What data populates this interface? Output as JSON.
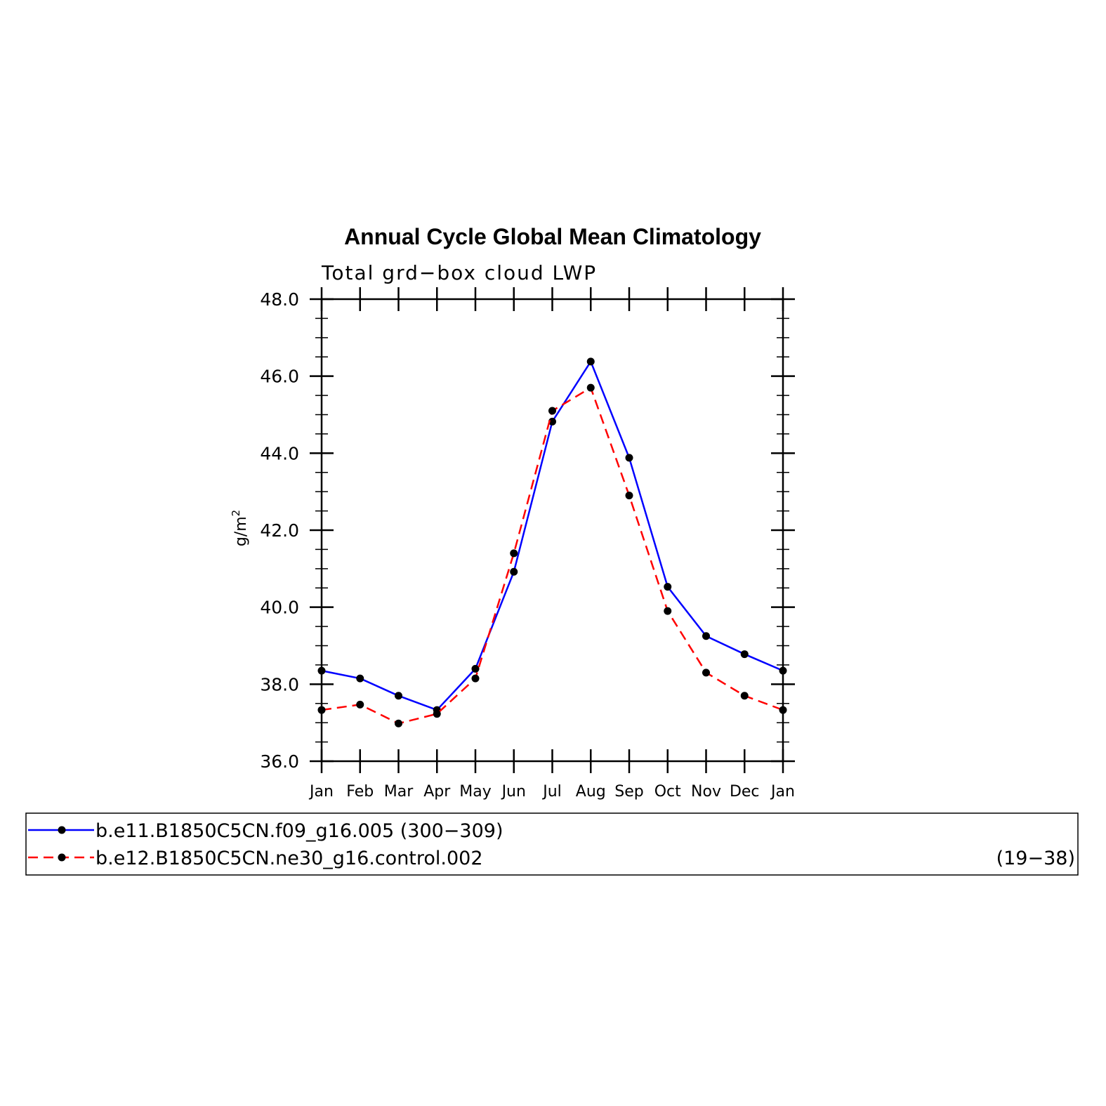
{
  "chart_data": {
    "type": "line",
    "title": "Annual Cycle Global Mean Climatology",
    "subtitle": "Total grd−box cloud LWP",
    "ylabel": "g/m",
    "ylabel_superscript": "2",
    "ylim": [
      36.0,
      48.0
    ],
    "yticks": [
      "36.0",
      "38.0",
      "40.0",
      "42.0",
      "44.0",
      "46.0",
      "48.0"
    ],
    "categories": [
      "Jan",
      "Feb",
      "Mar",
      "Apr",
      "May",
      "Jun",
      "Jul",
      "Aug",
      "Sep",
      "Oct",
      "Nov",
      "Dec",
      "Jan"
    ],
    "grid": false,
    "series": [
      {
        "name": "b.e11.B1850C5CN.f09_g16.005 (300−309)",
        "legend_label": "b.e11.B1850C5CN.f09_g16.005 (300−309)",
        "years_label": "",
        "color": "#0000ff",
        "dash": "solid",
        "values": [
          38.35,
          38.15,
          37.7,
          37.33,
          38.4,
          40.92,
          44.82,
          46.38,
          43.88,
          40.53,
          39.25,
          38.78,
          38.35
        ]
      },
      {
        "name": "b.e12.B1850C5CN.ne30_g16.control.002 (19−38)",
        "legend_label": "b.e12.B1850C5CN.ne30_g16.control.002",
        "years_label": "(19−38)",
        "color": "#ff0000",
        "dash": "dashed",
        "values": [
          37.33,
          37.47,
          36.98,
          37.23,
          38.15,
          41.4,
          45.1,
          45.7,
          42.9,
          39.9,
          38.3,
          37.7,
          37.33
        ]
      }
    ],
    "marker_color": "#000000",
    "legend_position": "bottom"
  }
}
